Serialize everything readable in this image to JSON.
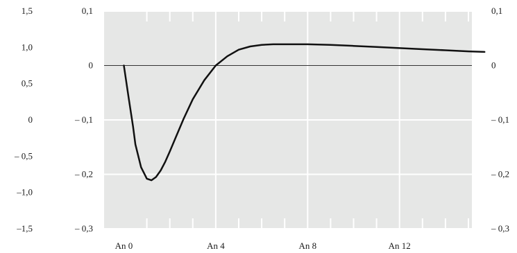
{
  "chart_data": {
    "type": "line",
    "title": "",
    "xlabel": "",
    "ylabel": "",
    "grid": true,
    "legend": "none",
    "x_tick_labels": [
      "An 0",
      "An 4",
      "An 8",
      "An 12"
    ],
    "x_tick_values": [
      0,
      4,
      8,
      12
    ],
    "xlim": [
      -0.85,
      15.9
    ],
    "ylim": [
      -0.3,
      0.1
    ],
    "y_right_ticks": {
      "labels": [
        "0,1",
        "0",
        "– 0,1",
        "– 0,2",
        "– 0,3"
      ],
      "values": [
        0.1,
        0,
        -0.1,
        -0.2,
        -0.3
      ]
    },
    "y_inner_left_ticks": {
      "labels": [
        "0,1",
        "0",
        "– 0,1",
        "– 0,2",
        "– 0,3"
      ],
      "values": [
        0.1,
        0,
        -0.1,
        -0.2,
        -0.3
      ]
    },
    "y_outer_left_ticks": {
      "labels": [
        "1,5",
        "1,0",
        "0,5",
        "0",
        "– 0,5",
        "–1,0",
        "–1,5"
      ],
      "values": [
        1.5,
        1.0,
        0.5,
        0,
        -0.5,
        -1.0,
        -1.5
      ],
      "range": [
        -1.5,
        1.5
      ]
    },
    "series": [
      {
        "color": "#111111",
        "x": [
          0,
          0.2,
          0.4,
          0.5,
          0.75,
          1.0,
          1.2,
          1.4,
          1.6,
          1.8,
          2.0,
          2.3,
          2.6,
          3.0,
          3.5,
          4.0,
          4.5,
          5.0,
          5.5,
          6.0,
          6.5,
          7.0,
          7.5,
          8.0,
          9.0,
          10.0,
          11.0,
          12.0,
          13.0,
          14.0,
          15.0,
          15.7
        ],
        "y": [
          0,
          -0.057,
          -0.112,
          -0.145,
          -0.187,
          -0.208,
          -0.211,
          -0.205,
          -0.193,
          -0.177,
          -0.158,
          -0.128,
          -0.098,
          -0.062,
          -0.027,
          0.0,
          0.017,
          0.029,
          0.035,
          0.038,
          0.039,
          0.039,
          0.039,
          0.039,
          0.038,
          0.036,
          0.034,
          0.032,
          0.03,
          0.028,
          0.026,
          0.025
        ]
      }
    ]
  }
}
